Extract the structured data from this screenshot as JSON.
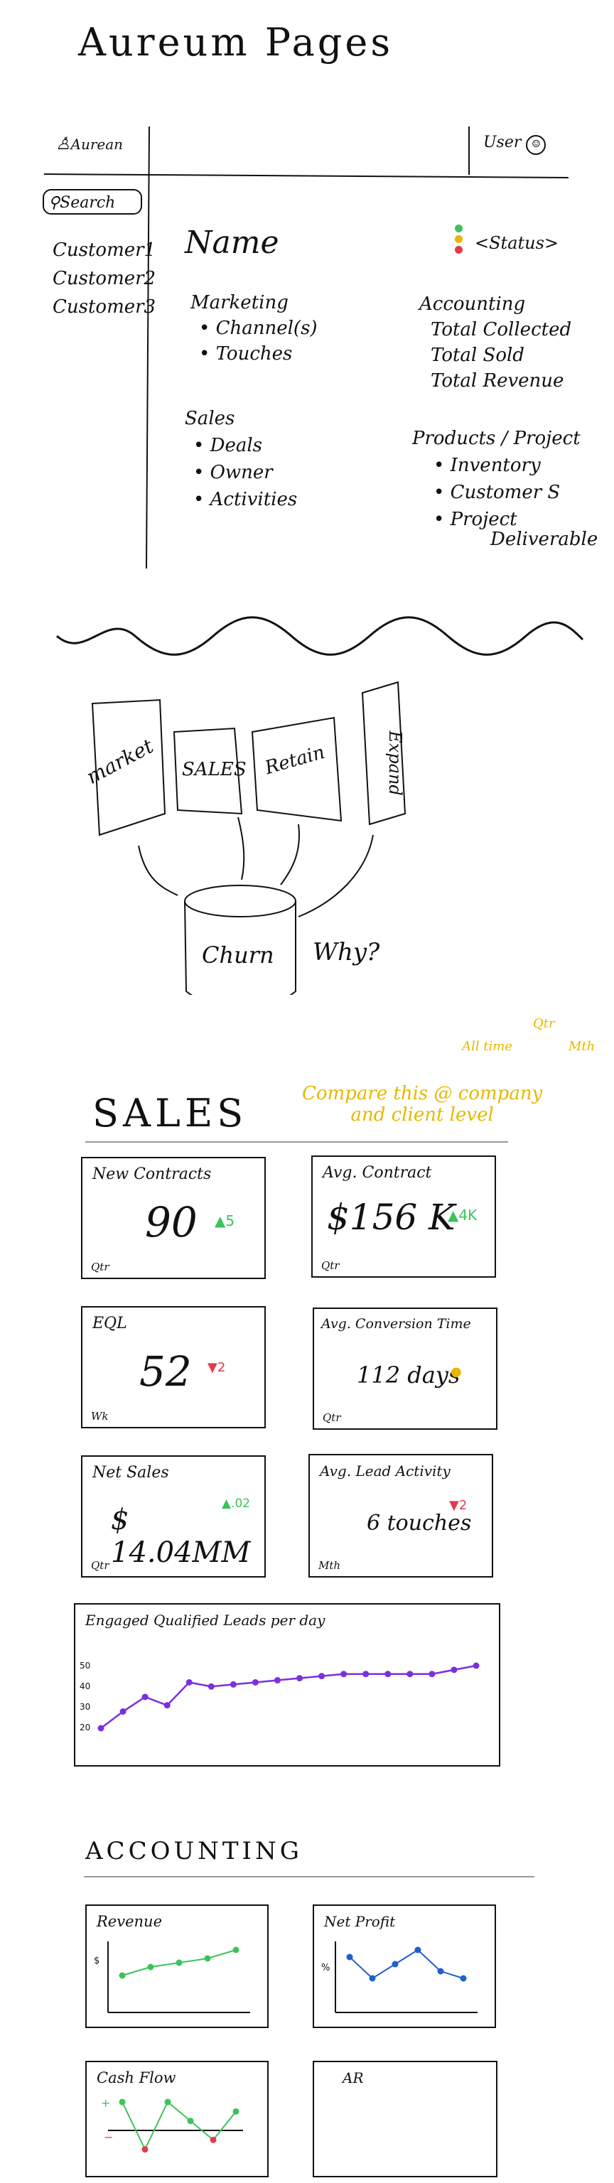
{
  "title": "Aureum Pages",
  "app": {
    "logo_label": "Aurean",
    "user_label": "User",
    "search_label": "Search",
    "customers": [
      "Customer1",
      "Customer2",
      "Customer3"
    ],
    "name_heading": "Name",
    "status": "<Status>",
    "status_colors": [
      "#3cc35a",
      "#e6b800",
      "#e23b4e"
    ],
    "marketing": {
      "title": "Marketing",
      "items": [
        "• Channel(s)",
        "• Touches"
      ]
    },
    "sales": {
      "title": "Sales",
      "items": [
        "• Deals",
        "• Owner",
        "• Activities"
      ]
    },
    "accounting": {
      "title": "Accounting",
      "items": [
        "Total Collected",
        "Total Sold",
        "Total Revenue"
      ]
    },
    "products": {
      "title": "Products / Project",
      "items": [
        "• Inventory",
        "• Customer S",
        "• Project",
        "Deliverable"
      ]
    }
  },
  "flow": {
    "stages": [
      "market",
      "SALES",
      "Retain",
      "Expand"
    ],
    "churn_label": "Churn",
    "why_label": "Why?"
  },
  "sales_section": {
    "heading": "SALES",
    "note_line1": "Compare this @ company",
    "note_line2": "and client level",
    "note_tags": [
      "All time",
      "Qtr",
      "Mth"
    ],
    "cards": [
      {
        "title": "New Contracts",
        "value": "90",
        "delta": "▲5",
        "period": "Qtr",
        "trend": "up"
      },
      {
        "title": "Avg. Contract",
        "value": "$156 K",
        "delta": "▲4K",
        "period": "Qtr",
        "trend": "up"
      },
      {
        "title": "EQL",
        "value": "52",
        "delta": "▼2",
        "period": "Wk",
        "trend": "down"
      },
      {
        "title": "Avg. Conversion Time",
        "value": "112 days",
        "delta": "●",
        "period": "Qtr",
        "trend": "neutral"
      },
      {
        "title": "Net Sales",
        "value": "$ 14.04MM",
        "delta": "▲.02",
        "period": "Qtr",
        "trend": "up"
      },
      {
        "title": "Avg. Lead Activity",
        "value": "6 touches",
        "delta": "▼2",
        "period": "Mth",
        "trend": "down"
      }
    ]
  },
  "chart_data": [
    {
      "type": "line",
      "title": "Engaged Qualified Leads per day",
      "yticks": [
        "50",
        "40",
        "30",
        "20"
      ],
      "ylim": [
        20,
        50
      ],
      "x": [
        1,
        2,
        3,
        4,
        5,
        6,
        7,
        8,
        9,
        10,
        11,
        12,
        13,
        14,
        15,
        16,
        17,
        18
      ],
      "series": [
        {
          "values": [
            20,
            28,
            35,
            31,
            42,
            40,
            41,
            42,
            43,
            44,
            45,
            46,
            46,
            46,
            46,
            46,
            48,
            50
          ],
          "color": "#7a2fe0"
        }
      ],
      "grid": false
    },
    {
      "type": "line",
      "title": "Revenue",
      "ylabel": "$",
      "series": [
        {
          "values": [
            4,
            5,
            5.5,
            6,
            7
          ],
          "color": "#3cc35a"
        }
      ]
    },
    {
      "type": "line",
      "title": "Net Profit",
      "ylabel": "%",
      "series": [
        {
          "values": [
            6,
            3,
            5,
            7,
            4,
            3
          ],
          "color": "#1f5fd0"
        }
      ]
    },
    {
      "type": "line",
      "title": "Cash Flow",
      "ylabel_pos": "+",
      "ylabel_neg": "−",
      "series": [
        {
          "values": [
            3,
            -2,
            3,
            1,
            -1,
            2
          ],
          "pos_color": "#3cc35a",
          "neg_color": "#e23b4e"
        }
      ]
    }
  ],
  "accounting_section": {
    "heading": "ACCOUNTING",
    "ar_title": "AR"
  }
}
